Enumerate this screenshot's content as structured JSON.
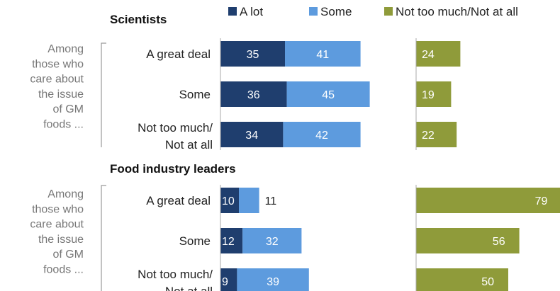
{
  "legend": [
    {
      "label": "A lot",
      "color": "#1f3e6e"
    },
    {
      "label": "Some",
      "color": "#5d9bde"
    },
    {
      "label": "Not too much/Not at all",
      "color": "#8f9b3a"
    }
  ],
  "colors": {
    "a_lot": "#1f3e6e",
    "some": "#5d9bde",
    "not_much": "#8f9b3a"
  },
  "chart_data": [
    {
      "type": "bar",
      "title": "Scientists",
      "side_note": [
        "Among",
        "those who",
        "care about",
        "the issue",
        "of GM",
        "foods ..."
      ],
      "categories": [
        {
          "lines": [
            "A great deal"
          ]
        },
        {
          "lines": [
            "Some"
          ]
        },
        {
          "lines": [
            "Not too much/",
            "Not at all"
          ]
        }
      ],
      "series": [
        {
          "name": "A lot",
          "values": [
            35,
            36,
            34
          ]
        },
        {
          "name": "Some",
          "values": [
            41,
            45,
            42
          ]
        },
        {
          "name": "Not too much/Not at all",
          "values": [
            24,
            19,
            22
          ]
        }
      ]
    },
    {
      "type": "bar",
      "title": "Food industry leaders",
      "side_note": [
        "Among",
        "those who",
        "care about",
        "the issue",
        "of GM",
        "foods ..."
      ],
      "categories": [
        {
          "lines": [
            "A great deal"
          ]
        },
        {
          "lines": [
            "Some"
          ]
        },
        {
          "lines": [
            "Not too much/",
            "Not at all"
          ]
        }
      ],
      "series": [
        {
          "name": "A lot",
          "values": [
            10,
            12,
            9
          ]
        },
        {
          "name": "Some",
          "values": [
            11,
            32,
            39
          ]
        },
        {
          "name": "Not too much/Not at all",
          "values": [
            79,
            56,
            50
          ]
        }
      ]
    }
  ]
}
